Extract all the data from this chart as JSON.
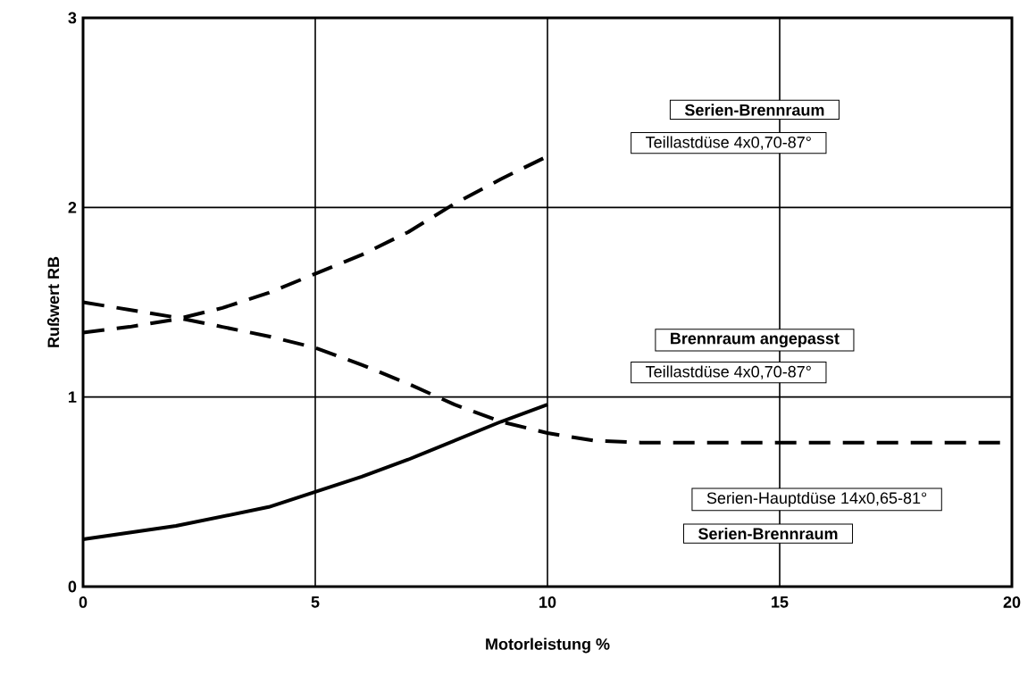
{
  "chart_data": {
    "type": "line",
    "xlabel": "Motorleistung %",
    "ylabel": "Rußwert RB",
    "xlim": [
      0,
      20
    ],
    "ylim": [
      0,
      3
    ],
    "xticks": [
      0,
      5,
      10,
      15,
      20
    ],
    "yticks": [
      0,
      1,
      2,
      3
    ],
    "grid": true,
    "series": [
      {
        "color": "#000000",
        "line_style": "dashed",
        "x": [
          0,
          1,
          2,
          3,
          4,
          5,
          6,
          7,
          8,
          9,
          10
        ],
        "values": [
          1.34,
          1.37,
          1.41,
          1.47,
          1.55,
          1.65,
          1.75,
          1.87,
          2.02,
          2.15,
          2.27
        ]
      },
      {
        "color": "#000000",
        "line_style": "dashed",
        "x": [
          0,
          1,
          2,
          3,
          4,
          5,
          6,
          7,
          8,
          9,
          10,
          11,
          12,
          15,
          20
        ],
        "values": [
          1.5,
          1.46,
          1.42,
          1.37,
          1.32,
          1.26,
          1.17,
          1.07,
          0.96,
          0.87,
          0.81,
          0.77,
          0.76,
          0.76,
          0.76
        ]
      },
      {
        "color": "#000000",
        "line_style": "solid",
        "x": [
          0,
          2,
          4,
          5,
          6,
          7,
          8,
          9,
          10
        ],
        "values": [
          0.25,
          0.32,
          0.42,
          0.5,
          0.58,
          0.67,
          0.77,
          0.87,
          0.96
        ]
      }
    ],
    "annotations": [
      "Serien-Brennraum",
      "Teillastdüse 4x0,70-87°",
      "Brennraum angepasst",
      "Teillastdüse 4x0,70-87°",
      "Serien-Hauptdüse 14x0,65-81°",
      "Serien-Brennraum"
    ]
  }
}
